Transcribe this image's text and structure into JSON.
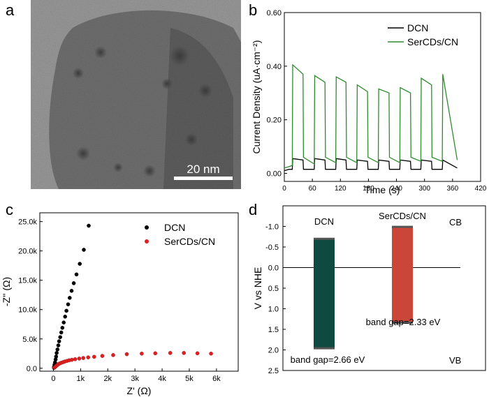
{
  "panels": {
    "a": "a",
    "b": "b",
    "c": "c",
    "d": "d"
  },
  "tem_image": {
    "scale_bar_label": "20 nm",
    "colors": {
      "background": "#8a8a8a",
      "particle": "#3c3c3c",
      "scale_bar": "#ffffff"
    }
  },
  "chart_data": [
    {
      "panel": "b",
      "type": "line",
      "title": "",
      "xlabel": "Time (s)",
      "ylabel": "Current Density (uA·cm⁻²)",
      "xlim": [
        0,
        420
      ],
      "ylim": [
        -0.03,
        0.6
      ],
      "xticks": [
        "0",
        "60",
        "120",
        "180",
        "240",
        "300",
        "360",
        "420"
      ],
      "yticks": [
        "0.00",
        "0.20",
        "0.40",
        "0.60"
      ],
      "legend_position": "top-right",
      "series": [
        {
          "name": "DCN",
          "color": "#000000",
          "x": [
            0,
            10,
            17,
            18,
            40,
            41,
            64,
            65,
            87,
            88,
            110,
            111,
            132,
            133,
            155,
            156,
            178,
            179,
            201,
            202,
            224,
            225,
            247,
            248,
            270,
            271,
            292,
            293,
            315,
            316,
            338,
            339,
            370
          ],
          "y": [
            0.01,
            0.015,
            0.015,
            0.055,
            0.05,
            0.015,
            0.015,
            0.055,
            0.05,
            0.015,
            0.015,
            0.055,
            0.05,
            0.015,
            0.015,
            0.05,
            0.045,
            0.015,
            0.015,
            0.05,
            0.045,
            0.015,
            0.015,
            0.05,
            0.045,
            0.015,
            0.015,
            0.05,
            0.045,
            0.015,
            0.015,
            0.05,
            0.02
          ]
        },
        {
          "name": "SerCDs/CN",
          "color": "#2e8b2e",
          "x": [
            0,
            10,
            17,
            18,
            40,
            41,
            64,
            65,
            87,
            88,
            110,
            111,
            132,
            133,
            155,
            156,
            178,
            179,
            201,
            202,
            224,
            225,
            247,
            248,
            270,
            271,
            292,
            293,
            315,
            316,
            338,
            339,
            370
          ],
          "y": [
            0.02,
            0.025,
            0.03,
            0.405,
            0.37,
            0.06,
            0.035,
            0.365,
            0.34,
            0.06,
            0.04,
            0.36,
            0.34,
            0.06,
            0.04,
            0.33,
            0.305,
            0.06,
            0.04,
            0.315,
            0.3,
            0.06,
            0.04,
            0.32,
            0.3,
            0.06,
            0.045,
            0.355,
            0.33,
            0.06,
            0.045,
            0.37,
            0.05
          ]
        }
      ]
    },
    {
      "panel": "c",
      "type": "scatter",
      "title": "",
      "xlabel": "Z' (Ω)",
      "ylabel": "-Z'' (Ω)",
      "xlim": [
        -0.5,
        6.8
      ],
      "ylim": [
        -0.5,
        26.5
      ],
      "xticks": [
        "0",
        "1k",
        "2k",
        "3k",
        "4k",
        "5k",
        "6k"
      ],
      "yticks": [
        "0.0",
        "5.0k",
        "10.0k",
        "15.0k",
        "20.0k",
        "25.0k"
      ],
      "legend_position": "top-right",
      "series": [
        {
          "name": "DCN",
          "color": "#000000",
          "x": [
            0.02,
            0.04,
            0.06,
            0.08,
            0.1,
            0.12,
            0.15,
            0.18,
            0.21,
            0.25,
            0.29,
            0.33,
            0.38,
            0.43,
            0.48,
            0.54,
            0.6,
            0.67,
            0.75,
            0.85,
            0.97,
            1.12,
            1.3
          ],
          "y": [
            0.2,
            0.6,
            1.0,
            1.5,
            2.0,
            2.6,
            3.2,
            3.9,
            4.6,
            5.3,
            6.1,
            6.9,
            7.8,
            8.8,
            9.8,
            10.9,
            12.0,
            13.2,
            14.5,
            16.0,
            17.8,
            20.2,
            24.3
          ]
        },
        {
          "name": "SerCDs/CN",
          "color": "#e02020",
          "x": [
            0.02,
            0.05,
            0.08,
            0.12,
            0.16,
            0.2,
            0.25,
            0.3,
            0.36,
            0.42,
            0.5,
            0.58,
            0.68,
            0.8,
            0.95,
            1.1,
            1.28,
            1.5,
            1.8,
            2.2,
            2.7,
            3.25,
            3.75,
            4.3,
            4.8,
            5.3,
            5.8
          ],
          "y": [
            0.05,
            0.15,
            0.3,
            0.45,
            0.6,
            0.75,
            0.85,
            0.95,
            1.05,
            1.15,
            1.25,
            1.35,
            1.45,
            1.55,
            1.65,
            1.75,
            1.85,
            1.95,
            2.1,
            2.25,
            2.4,
            2.5,
            2.55,
            2.6,
            2.6,
            2.55,
            2.5
          ]
        }
      ]
    },
    {
      "panel": "d",
      "type": "bar",
      "title": "",
      "xlabel": "",
      "ylabel": "V vs NHE",
      "ylim_inverted": [
        -1.5,
        2.5
      ],
      "yticks": [
        "-1.0",
        "-0.5",
        "0.0",
        "0.5",
        "1.0",
        "1.5",
        "2.0",
        "2.5"
      ],
      "ytick_values": [
        -1.0,
        -0.5,
        0.0,
        0.5,
        1.0,
        1.5,
        2.0,
        2.5
      ],
      "reference_line": 0.0,
      "region_labels": {
        "top": "CB",
        "bottom": "VB"
      },
      "bars": [
        {
          "name": "DCN",
          "cb": -0.7,
          "vb": 1.96,
          "color": "#0f4a40",
          "band_gap_label": "band gap=2.66 eV"
        },
        {
          "name": "SerCDs/CN",
          "cb": -0.99,
          "vb": 1.34,
          "color": "#c94638",
          "band_gap_label": "band gap=2.33 eV"
        }
      ]
    }
  ]
}
